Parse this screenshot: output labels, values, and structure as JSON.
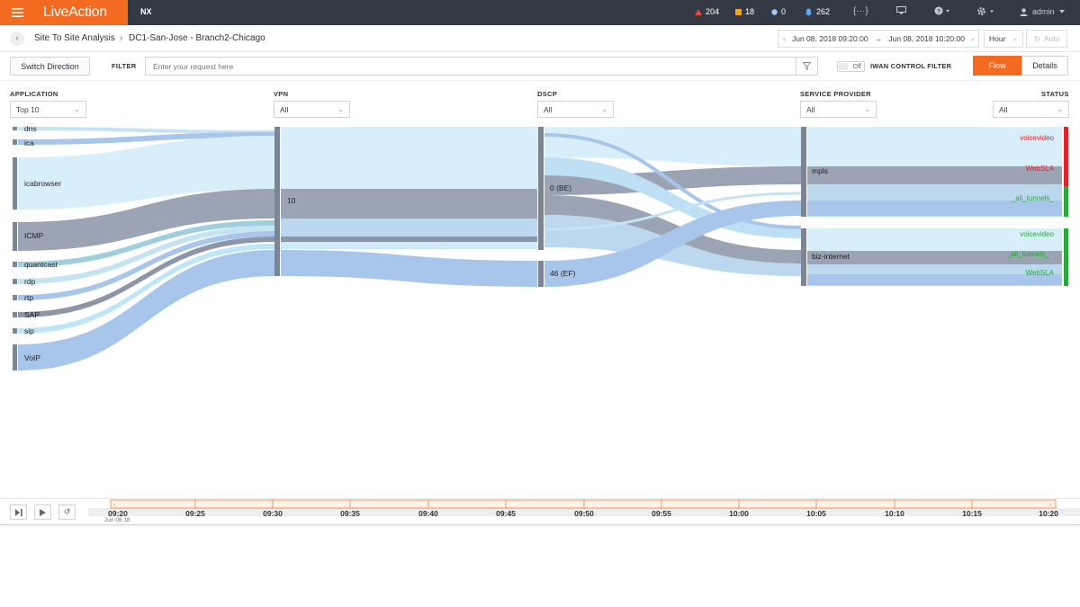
{
  "colors": {
    "topbar": "#343a44",
    "brand": "#f26b21",
    "flow_light": "#d8eefa",
    "flow_blue": "#a8c6ec",
    "flow_gray": "#9aa4b4",
    "status_red": "#e0242a",
    "status_green": "#28a83a",
    "node_bar": "#7c8594"
  },
  "topbar": {
    "logo": "LiveAction",
    "product": "NX",
    "alerts": [
      {
        "icon": "triangle-alert-icon",
        "color": "#e8453c",
        "count": "204"
      },
      {
        "icon": "square-warning-icon",
        "color": "#f2a31b",
        "count": "18"
      },
      {
        "icon": "circle-info-icon",
        "color": "#a9c7ff",
        "count": "0"
      },
      {
        "icon": "bell-icon",
        "color": "#5fa8ff",
        "count": "262"
      }
    ],
    "code_icon": "{···}",
    "user": "admin"
  },
  "breadcrumb": {
    "section": "Site To Site Analysis",
    "separator": "›",
    "path": "DC1-San-Jose - Branch2-Chicago"
  },
  "time_range": {
    "start": "Jun 08, 2018 09:20:00",
    "arrow": "→",
    "end": "Jun 08, 2018 10:20:00",
    "granularity": "Hour",
    "auto_label": "Auto"
  },
  "filterbar": {
    "switch_direction": "Switch Direction",
    "filter_label": "FILTER",
    "filter_placeholder": "Enter your request here",
    "toggle_state": "Off",
    "iwan_label": "IWAN CONTROL FILTER",
    "flow_tab": "Flow",
    "details_tab": "Details"
  },
  "columns": [
    {
      "key": "application",
      "label": "APPLICATION",
      "selected": "Top 10"
    },
    {
      "key": "vpn",
      "label": "VPN",
      "selected": "All"
    },
    {
      "key": "dscp",
      "label": "DSCP",
      "selected": "All"
    },
    {
      "key": "provider",
      "label": "SERVICE PROVIDER",
      "selected": "All"
    },
    {
      "key": "status",
      "label": "STATUS",
      "selected": "All"
    }
  ],
  "applications": [
    {
      "name": "dns"
    },
    {
      "name": "ica"
    },
    {
      "name": "icabrowser"
    },
    {
      "name": "ICMP"
    },
    {
      "name": "quantcast"
    },
    {
      "name": "rdp"
    },
    {
      "name": "rtp"
    },
    {
      "name": "SAP"
    },
    {
      "name": "sip"
    },
    {
      "name": "VoIP"
    }
  ],
  "vpn_nodes": [
    {
      "name": "10"
    }
  ],
  "dscp_nodes": [
    {
      "name": "0 (BE)"
    },
    {
      "name": "46 (EF)"
    }
  ],
  "provider_nodes": [
    {
      "name": "mpls"
    },
    {
      "name": "biz-internet"
    }
  ],
  "status_nodes": [
    {
      "name": "voicevideo",
      "provider": "mpls",
      "color": "#e0242a"
    },
    {
      "name": "WebSLA",
      "provider": "mpls",
      "color": "#e0242a"
    },
    {
      "name": "_all_tunnels_",
      "provider": "mpls",
      "color": "#28a83a"
    },
    {
      "name": "voicevideo",
      "provider": "biz-internet",
      "color": "#28a83a"
    },
    {
      "name": "_all_tunnels_",
      "provider": "biz-internet",
      "color": "#28a83a"
    },
    {
      "name": "WebSLA",
      "provider": "biz-internet",
      "color": "#28a83a"
    }
  ],
  "timeline": {
    "ticks": [
      "09:20",
      "09:25",
      "09:30",
      "09:35",
      "09:40",
      "09:45",
      "09:50",
      "09:55",
      "10:00",
      "10:05",
      "10:10",
      "10:15",
      "10:20"
    ],
    "date": "Jun 08.18"
  }
}
